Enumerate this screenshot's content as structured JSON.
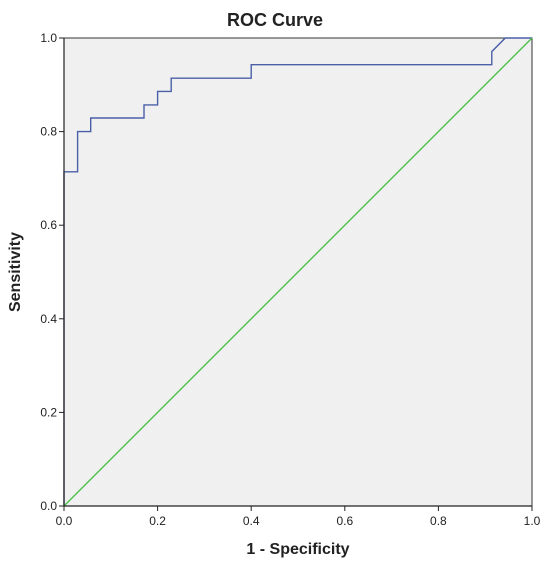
{
  "chart_data": {
    "type": "line",
    "title": "ROC Curve",
    "xlabel": "1 - Specificity",
    "ylabel": "Sensitivity",
    "xlim": [
      0,
      1
    ],
    "ylim": [
      0,
      1
    ],
    "x_ticks": [
      "0.0",
      "0.2",
      "0.4",
      "0.6",
      "0.8",
      "1.0"
    ],
    "y_ticks": [
      "0.0",
      "0.2",
      "0.4",
      "0.6",
      "0.8",
      "1.0"
    ],
    "grid": false,
    "legend": "none",
    "background_color": "#f0f0f0",
    "series": [
      {
        "color": "#4a5fa8",
        "step": true,
        "x": [
          0,
          0,
          0.029,
          0.029,
          0.057,
          0.057,
          0.171,
          0.171,
          0.2,
          0.2,
          0.229,
          0.229,
          0.4,
          0.4,
          0.914,
          0.914,
          0.943,
          1.0
        ],
        "y": [
          0,
          0.714,
          0.714,
          0.8,
          0.8,
          0.829,
          0.829,
          0.857,
          0.857,
          0.886,
          0.886,
          0.914,
          0.914,
          0.943,
          0.943,
          0.971,
          1.0,
          1.0
        ]
      },
      {
        "color": "#4cc24c",
        "step": false,
        "x": [
          0,
          1
        ],
        "y": [
          0,
          1
        ]
      }
    ]
  }
}
